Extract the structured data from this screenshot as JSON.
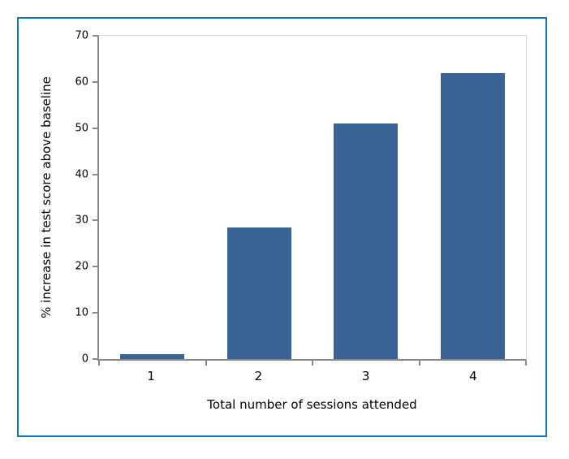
{
  "chart_data": {
    "type": "bar",
    "title": "",
    "categories": [
      "1",
      "2",
      "3",
      "4"
    ],
    "values": [
      1,
      28.5,
      51,
      62
    ],
    "xlabel": "Total number of sessions attended",
    "ylabel": "% increase in test score above baseline",
    "ylim": [
      0,
      70
    ],
    "y_ticks": [
      0,
      10,
      20,
      30,
      40,
      50,
      60,
      70
    ],
    "grid": "top gridline and right plot border only",
    "legend": "none",
    "bar_gap_ratio": 0.4,
    "colors": {
      "bar": "#386394",
      "frame_border": "#0e73ba",
      "axis": "#8a8a8a",
      "gridline": "#d9d9d9",
      "text": "#000000"
    }
  }
}
